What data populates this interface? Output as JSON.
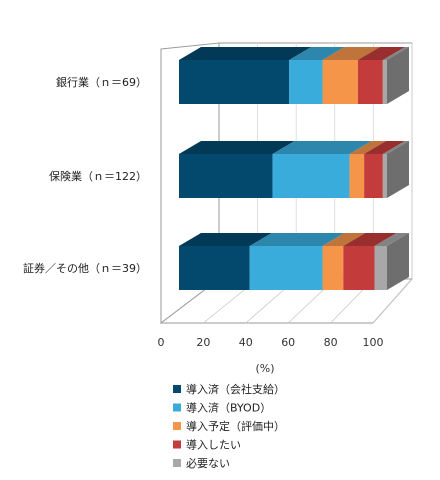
{
  "chart_data": {
    "type": "bar",
    "orientation": "horizontal",
    "stacked": true,
    "style": "3d",
    "categories": [
      "銀行業（ｎ＝69）",
      "保険業（ｎ＝122）",
      "証券／その他（ｎ＝39）"
    ],
    "series": [
      {
        "name": "導入済（会社支給）",
        "color": "#03496E",
        "values": [
          53,
          45,
          34
        ]
      },
      {
        "name": "導入済（BYOD）",
        "color": "#3AACDC",
        "values": [
          16,
          37,
          35
        ]
      },
      {
        "name": "導入予定（評価中）",
        "color": "#F4954A",
        "values": [
          17,
          7,
          10
        ]
      },
      {
        "name": "導入したい",
        "color": "#C33B3A",
        "values": [
          12,
          9,
          15
        ]
      },
      {
        "name": "必要ない",
        "color": "#A8A8A8",
        "values": [
          2,
          2,
          6
        ]
      }
    ],
    "xlabel": "(%)",
    "xlim": [
      0,
      100
    ],
    "xticks": [
      "0",
      "20",
      "40",
      "60",
      "80",
      "100"
    ],
    "grid": true,
    "legend_position": "bottom"
  }
}
